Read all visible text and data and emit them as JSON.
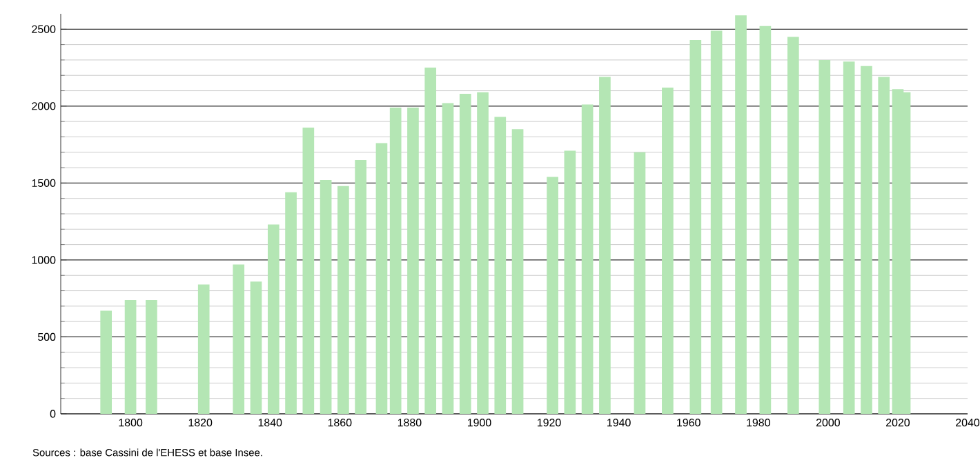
{
  "chart_data": {
    "type": "bar",
    "x": [
      1793,
      1800,
      1806,
      1821,
      1831,
      1836,
      1841,
      1846,
      1851,
      1856,
      1861,
      1866,
      1872,
      1876,
      1881,
      1886,
      1891,
      1896,
      1901,
      1906,
      1911,
      1921,
      1926,
      1931,
      1936,
      1946,
      1954,
      1962,
      1968,
      1975,
      1982,
      1990,
      1999,
      2006,
      2011,
      2016,
      2020,
      2022
    ],
    "values": [
      670,
      740,
      740,
      840,
      970,
      860,
      1230,
      1440,
      1860,
      1520,
      1480,
      1650,
      1760,
      1990,
      1990,
      2250,
      2020,
      2080,
      2090,
      1930,
      1850,
      1540,
      1710,
      2010,
      2190,
      1700,
      2120,
      2430,
      2490,
      2590,
      2520,
      2450,
      2300,
      2290,
      2260,
      2190,
      2110,
      2090
    ],
    "color": "#b4e6b4",
    "xlim": [
      1780,
      2040
    ],
    "xticks": [
      1800,
      1820,
      1840,
      1860,
      1880,
      1900,
      1920,
      1940,
      1960,
      1980,
      2000,
      2020,
      2040
    ],
    "ylim": [
      0,
      2600
    ],
    "yticks": [
      0,
      500,
      1000,
      1500,
      2000,
      2500
    ],
    "grid": "y",
    "annotations": [
      "Sources : base Cassini de l'EHESS et base Insee."
    ]
  }
}
